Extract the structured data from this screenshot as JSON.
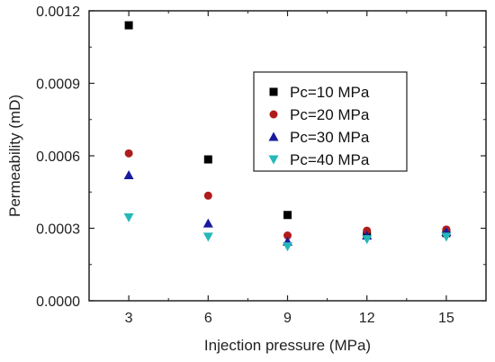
{
  "chart_data": {
    "type": "scatter",
    "title": "",
    "xlabel": "Injection pressure (MPa)",
    "ylabel": "Permeability (mD)",
    "xlim": [
      1.5,
      16.5
    ],
    "ylim": [
      0,
      0.0012
    ],
    "x_ticks": [
      3,
      6,
      9,
      12,
      15
    ],
    "y_ticks": [
      0,
      0.0003,
      0.0006,
      0.0009,
      0.0012
    ],
    "x_tick_labels": [
      "3",
      "6",
      "9",
      "12",
      "15"
    ],
    "y_tick_labels": [
      "0.0000",
      "0.0003",
      "0.0006",
      "0.0009",
      "0.0012"
    ],
    "grid": false,
    "legend_position": "top-right",
    "series": [
      {
        "name": "Pc=10 MPa",
        "marker": "square",
        "color": "#000000",
        "x": [
          3,
          6,
          9,
          12,
          15
        ],
        "y": [
          0.00114,
          0.000585,
          0.000355,
          0.00027,
          0.00028
        ]
      },
      {
        "name": "Pc=20 MPa",
        "marker": "circle",
        "color": "#b01c1c",
        "x": [
          3,
          6,
          9,
          12,
          15
        ],
        "y": [
          0.00061,
          0.000435,
          0.00027,
          0.00029,
          0.000295
        ]
      },
      {
        "name": "Pc=30 MPa",
        "marker": "triangle-up",
        "color": "#1a1a9e",
        "x": [
          3,
          6,
          9,
          12,
          15
        ],
        "y": [
          0.00052,
          0.00032,
          0.000245,
          0.00027,
          0.000285
        ]
      },
      {
        "name": "Pc=40 MPa",
        "marker": "triangle-down",
        "color": "#26b8b8",
        "x": [
          3,
          6,
          9,
          12,
          15
        ],
        "y": [
          0.000345,
          0.000265,
          0.000225,
          0.000255,
          0.000265
        ]
      }
    ]
  }
}
